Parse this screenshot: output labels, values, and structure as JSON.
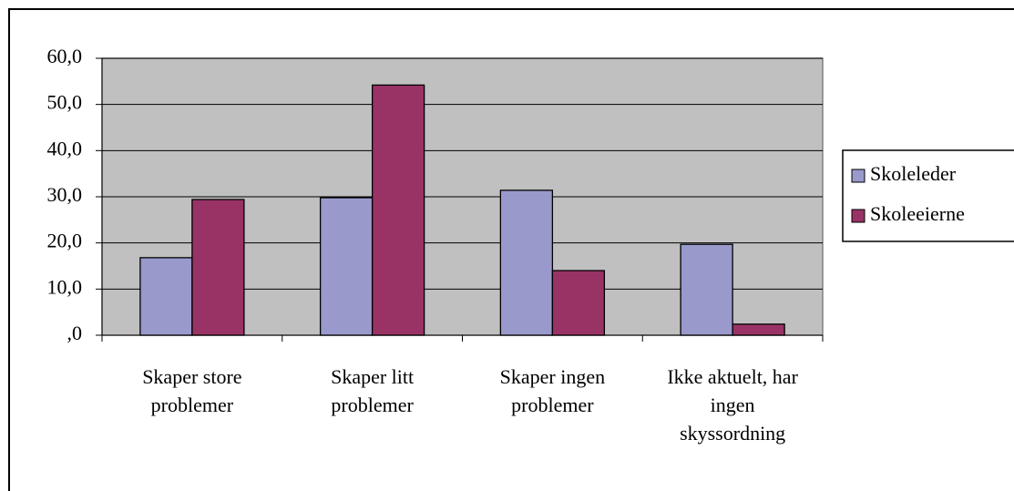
{
  "chart_data": {
    "type": "bar",
    "categories": [
      "Skaper store problemer",
      "Skaper litt problemer",
      "Skaper ingen problemer",
      "Ikke aktuelt, har ingen skyssordning"
    ],
    "series": [
      {
        "name": "Skoleleder",
        "color": "#9999cc",
        "values": [
          16.8,
          29.8,
          31.4,
          19.7
        ]
      },
      {
        "name": "Skoleeierne",
        "color": "#993366",
        "values": [
          29.4,
          54.2,
          14.0,
          2.4
        ]
      }
    ],
    "ylim": [
      0,
      60
    ],
    "yticks": [
      {
        "value": 0,
        "label": ",0"
      },
      {
        "value": 10,
        "label": "10,0"
      },
      {
        "value": 20,
        "label": "20,0"
      },
      {
        "value": 30,
        "label": "30,0"
      },
      {
        "value": 40,
        "label": "40,0"
      },
      {
        "value": 50,
        "label": "50,0"
      },
      {
        "value": 60,
        "label": "60,0"
      }
    ],
    "grid": true,
    "legend": "right",
    "plot_background": "#c0c0c0"
  }
}
